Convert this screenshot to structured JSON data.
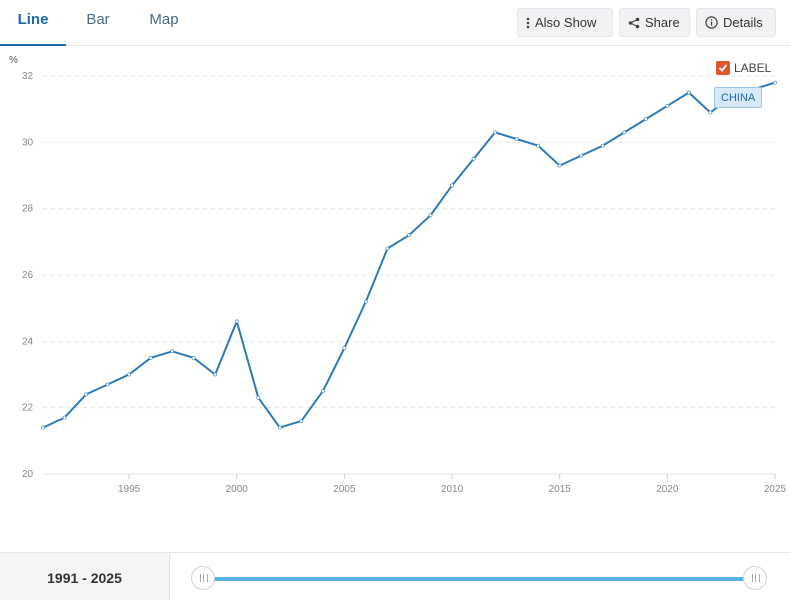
{
  "tabs": [
    {
      "label": "Line",
      "active": true
    },
    {
      "label": "Bar",
      "active": false
    },
    {
      "label": "Map",
      "active": false
    }
  ],
  "toolbar": {
    "also_show_label": "Also Show",
    "share_label": "Share",
    "details_label": "Details",
    "also_show_icon": "vertical-dots-icon",
    "share_icon": "share-icon",
    "details_icon": "info-icon"
  },
  "legend": {
    "label": "LABEL",
    "checked": true,
    "color": "#e0562d"
  },
  "series_label": "CHINA",
  "range": {
    "start": "1991",
    "end": "2025",
    "text": "1991 - 2025"
  },
  "chart_data": {
    "type": "line",
    "ylabel": "%",
    "xlabel": "",
    "ylim": [
      20,
      32
    ],
    "xlim": [
      1991,
      2025
    ],
    "yticks": [
      20,
      22,
      24,
      26,
      28,
      30,
      32
    ],
    "xticks": [
      1995,
      2000,
      2005,
      2010,
      2015,
      2020,
      2025
    ],
    "grid": true,
    "color": "#2e7ab6",
    "series": [
      {
        "name": "CHINA",
        "x": [
          1991,
          1992,
          1993,
          1994,
          1995,
          1996,
          1997,
          1998,
          1999,
          2000,
          2001,
          2002,
          2003,
          2004,
          2005,
          2006,
          2007,
          2008,
          2009,
          2010,
          2011,
          2012,
          2013,
          2014,
          2015,
          2016,
          2017,
          2018,
          2019,
          2020,
          2021,
          2022,
          2023,
          2024,
          2025
        ],
        "values": [
          21.4,
          21.7,
          22.4,
          22.7,
          23.0,
          23.5,
          23.7,
          23.5,
          23.0,
          24.6,
          22.3,
          21.4,
          21.6,
          22.5,
          23.8,
          25.2,
          26.8,
          27.2,
          27.8,
          28.7,
          29.5,
          30.3,
          30.1,
          29.9,
          29.3,
          29.6,
          29.9,
          30.3,
          30.7,
          31.1,
          31.5,
          30.9,
          31.4,
          31.6,
          31.8
        ]
      }
    ]
  }
}
